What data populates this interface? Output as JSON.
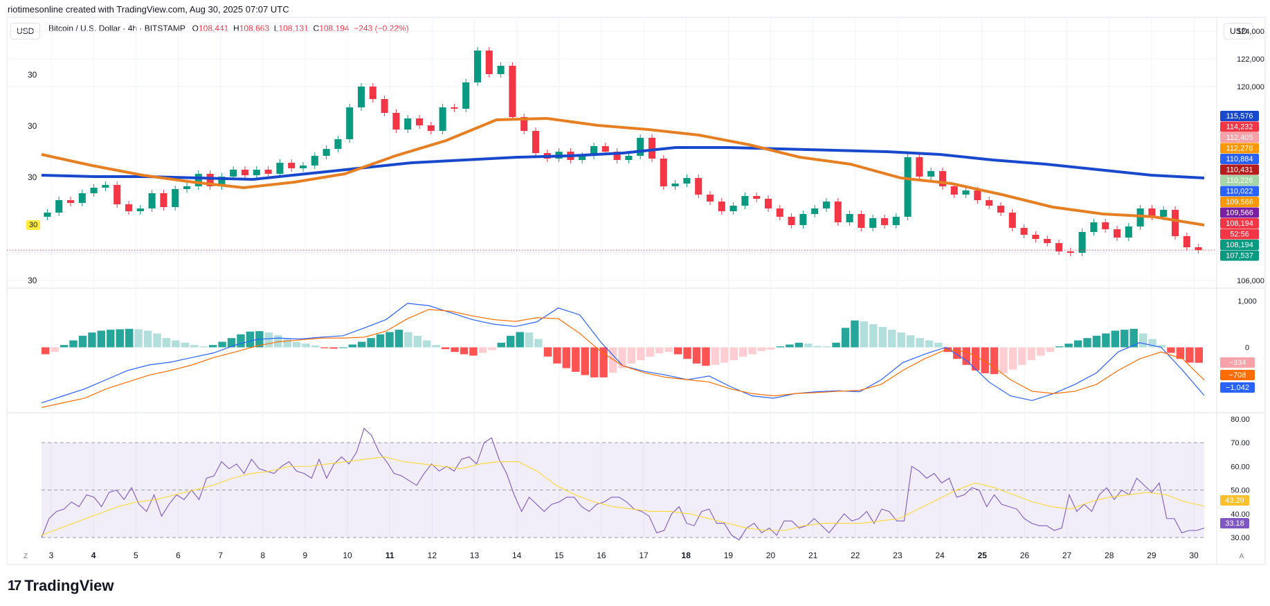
{
  "header": {
    "attribution": "riotimesonline created with TradingView.com, Aug 30, 2025 07:07 UTC"
  },
  "legend": {
    "currency_left": "USD",
    "currency_right": "USD",
    "symbol": "Bitcoin / U.S. Dollar · 4h · BITSTAMP",
    "open_label": "O",
    "open": "108,441",
    "high_label": "H",
    "high": "108,663",
    "low_label": "L",
    "low": "108,131",
    "close_label": "C",
    "close": "108,194",
    "change": "−243 (−0.22%)"
  },
  "left_labels": [
    "30",
    "30",
    "30",
    "30",
    "30"
  ],
  "left_tag": "30",
  "footer": {
    "logo_text": "TradingView",
    "corner_left": "Z",
    "corner_right": "A"
  },
  "colors": {
    "up": "#089981",
    "down": "#f23645",
    "ma_slow": "#1848cc",
    "ma_fast": "#e67e22",
    "donchian": "#ffeb3b",
    "rsi": "#7e57c2"
  },
  "chart_data": [
    {
      "type": "candlestick",
      "title": "Bitcoin / U.S. Dollar · 4h · BITSTAMP",
      "x_ticks": [
        "3",
        "4",
        "5",
        "6",
        "7",
        "8",
        "9",
        "10",
        "11",
        "12",
        "13",
        "14",
        "15",
        "16",
        "17",
        "18",
        "19",
        "20",
        "21",
        "22",
        "23",
        "24",
        "25",
        "26",
        "27",
        "28",
        "29",
        "30"
      ],
      "y_ticks": [
        "124,000",
        "122,000",
        "120,000",
        "106,000"
      ],
      "ylim": [
        105500,
        125000
      ],
      "close_series": [
        110900,
        111800,
        111600,
        112300,
        112700,
        112900,
        111500,
        111000,
        111200,
        112300,
        111300,
        112600,
        112800,
        113700,
        112800,
        113500,
        114000,
        113600,
        114000,
        113700,
        114500,
        114100,
        114300,
        115000,
        115500,
        116200,
        118500,
        120000,
        119100,
        118100,
        116900,
        117700,
        117200,
        116800,
        118500,
        118400,
        120300,
        122600,
        120900,
        121500,
        117800,
        116800,
        115200,
        114800,
        115300,
        114700,
        115000,
        115700,
        115300,
        114700,
        115000,
        116300,
        114800,
        112800,
        113000,
        113400,
        112200,
        111700,
        111000,
        111400,
        112100,
        111900,
        111200,
        110600,
        110000,
        110800,
        111200,
        111700,
        110200,
        110800,
        109800,
        110500,
        110000,
        110600,
        114900,
        113500,
        113900,
        112800,
        112200,
        112500,
        111800,
        111400,
        110900,
        109800,
        109300,
        109000,
        108700,
        108100,
        108000,
        109500,
        110200,
        109700,
        109100,
        109900,
        111200,
        110600,
        111100,
        109200,
        108400,
        108194
      ],
      "overlay_series": [
        {
          "name": "slow MA",
          "values": [
            113600,
            113500,
            113500,
            113400,
            113300,
            113700,
            114100,
            114500,
            114700,
            114900,
            115000,
            115200,
            115600,
            115600,
            115500,
            115400,
            115300,
            115100,
            114700,
            114400,
            114000,
            113600,
            113400
          ]
        },
        {
          "name": "fast MA",
          "values": [
            115100,
            114300,
            113600,
            113100,
            112700,
            113100,
            113700,
            115000,
            116100,
            117600,
            117700,
            117200,
            116900,
            116500,
            115800,
            114900,
            114400,
            113400,
            113000,
            112200,
            111300,
            110800,
            110600,
            110000
          ]
        }
      ],
      "price_labels": [
        {
          "value": "115,576",
          "color": "#1848cc"
        },
        {
          "value": "114,232",
          "color": "#f23645"
        },
        {
          "value": "112,405",
          "color": "#f7a1a8"
        },
        {
          "value": "112,276",
          "color": "#ff9800"
        },
        {
          "value": "110,884",
          "color": "#2962ff"
        },
        {
          "value": "110,431",
          "color": "#b71c1c"
        },
        {
          "value": "110,226",
          "color": "#a5d6a7"
        },
        {
          "value": "110,022",
          "color": "#2962ff"
        },
        {
          "value": "109,566",
          "color": "#ff9800"
        },
        {
          "value": "109,566",
          "color": "#7b1fa2"
        },
        {
          "value": "108,194",
          "color": "#f23645"
        },
        {
          "value": "52:56",
          "color": "#f23645"
        },
        {
          "value": "108,194",
          "color": "#089981"
        },
        {
          "value": "107,537",
          "color": "#089981"
        }
      ]
    },
    {
      "type": "bar",
      "y_ticks": [
        "1,000",
        "0"
      ],
      "ylim": [
        -1400,
        1250
      ],
      "histogram": [
        -150,
        -100,
        50,
        150,
        250,
        320,
        360,
        380,
        390,
        400,
        390,
        360,
        300,
        200,
        150,
        100,
        50,
        20,
        50,
        120,
        200,
        280,
        340,
        350,
        320,
        260,
        180,
        120,
        80,
        40,
        -20,
        -30,
        0,
        60,
        120,
        200,
        280,
        330,
        380,
        330,
        250,
        150,
        50,
        -40,
        -100,
        -150,
        -180,
        -120,
        -60,
        100,
        250,
        330,
        320,
        180,
        -200,
        -350,
        -450,
        -530,
        -600,
        -650,
        -650,
        -550,
        -450,
        -350,
        -280,
        -200,
        -130,
        -100,
        -150,
        -250,
        -350,
        -400,
        -380,
        -330,
        -280,
        -200,
        -150,
        -80,
        -50,
        20,
        60,
        100,
        80,
        30,
        20,
        100,
        420,
        580,
        560,
        500,
        440,
        380,
        320,
        260,
        200,
        150,
        100,
        -100,
        -250,
        -380,
        -500,
        -560,
        -580,
        -560,
        -480,
        -380,
        -280,
        -180,
        -100,
        20,
        80,
        150,
        200,
        250,
        300,
        360,
        380,
        400,
        300,
        180,
        50,
        -120,
        -250,
        -330,
        -334
      ],
      "lines": [
        {
          "name": "line-blue",
          "values": [
            -1200,
            -1050,
            -900,
            -700,
            -500,
            -380,
            -320,
            -220,
            -120,
            50,
            170,
            200,
            180,
            220,
            250,
            420,
            600,
            950,
            900,
            750,
            600,
            500,
            450,
            550,
            850,
            700,
            100,
            -400,
            -520,
            -600,
            -700,
            -620,
            -850,
            -1050,
            -1100,
            -1000,
            -960,
            -940,
            -960,
            -700,
            -330,
            -150,
            0,
            -300,
            -750,
            -1050,
            -1150,
            -1000,
            -800,
            -550,
            -100,
            100,
            0,
            -500,
            -1042
          ]
        },
        {
          "name": "line-orange",
          "values": [
            -1300,
            -1200,
            -1100,
            -900,
            -750,
            -600,
            -500,
            -380,
            -220,
            -100,
            30,
            120,
            160,
            200,
            200,
            220,
            350,
            620,
            820,
            780,
            680,
            600,
            560,
            640,
            620,
            300,
            -100,
            -400,
            -550,
            -650,
            -700,
            -750,
            -900,
            -1000,
            -1050,
            -1000,
            -980,
            -950,
            -930,
            -800,
            -500,
            -250,
            -50,
            -100,
            -350,
            -700,
            -950,
            -1000,
            -950,
            -800,
            -500,
            -250,
            -100,
            -250,
            -708
          ]
        }
      ],
      "price_labels": [
        {
          "value": "−334",
          "color": "#f7a1a8"
        },
        {
          "value": "−708",
          "color": "#ff6d00"
        },
        {
          "value": "−1,042",
          "color": "#2962ff"
        }
      ]
    },
    {
      "type": "line",
      "y_ticks": [
        "80.00",
        "70.00",
        "60.00",
        "50.00",
        "40.00",
        "30.00"
      ],
      "ylim": [
        28,
        82
      ],
      "band": [
        30,
        70
      ],
      "series": [
        {
          "name": "rsi",
          "values": [
            30,
            38,
            41,
            42,
            45,
            43,
            48,
            47,
            43,
            49,
            50,
            46,
            51,
            44,
            41,
            48,
            39,
            44,
            48,
            46,
            50,
            46,
            55,
            56,
            62,
            59,
            61,
            57,
            63,
            59,
            58,
            57,
            60,
            62,
            58,
            57,
            55,
            63,
            55,
            61,
            64,
            61,
            66,
            76,
            73,
            66,
            62,
            57,
            56,
            54,
            52,
            57,
            61,
            58,
            60,
            58,
            63,
            64,
            61,
            70,
            72,
            63,
            57,
            48,
            41,
            47,
            44,
            41,
            44,
            45,
            47,
            47,
            43,
            41,
            44,
            45,
            47,
            47,
            45,
            42,
            41,
            39,
            32,
            33,
            40,
            43,
            36,
            35,
            41,
            42,
            36,
            36,
            31,
            29,
            34,
            36,
            32,
            34,
            31,
            37,
            37,
            34,
            35,
            38,
            35,
            32,
            36,
            40,
            37,
            38,
            41,
            36,
            42,
            41,
            37,
            37,
            60,
            58,
            55,
            57,
            53,
            55,
            47,
            48,
            51,
            50,
            43,
            48,
            44,
            43,
            42,
            38,
            36,
            35,
            35,
            33,
            34,
            48,
            41,
            44,
            41,
            48,
            51,
            46,
            50,
            48,
            55,
            52,
            49,
            53,
            38,
            38,
            32,
            33,
            33,
            34
          ]
        },
        {
          "name": "rsi-ma",
          "values": [
            31,
            34,
            37,
            40,
            43,
            45,
            46,
            48,
            50,
            52,
            55,
            57,
            58,
            60,
            60,
            61,
            62,
            63,
            64,
            62,
            61,
            60,
            59,
            61,
            62,
            62,
            58,
            52,
            48,
            45,
            43,
            42,
            41,
            41,
            40,
            38,
            36,
            34,
            33,
            33,
            35,
            36,
            36,
            36,
            37,
            38,
            42,
            46,
            50,
            53,
            51,
            48,
            45,
            43,
            42,
            45,
            47,
            48,
            49,
            48,
            45,
            43.29
          ]
        }
      ],
      "price_labels": [
        {
          "value": "43.29",
          "color": "#fbc02d"
        },
        {
          "value": "33.18",
          "color": "#7e57c2"
        }
      ]
    }
  ]
}
